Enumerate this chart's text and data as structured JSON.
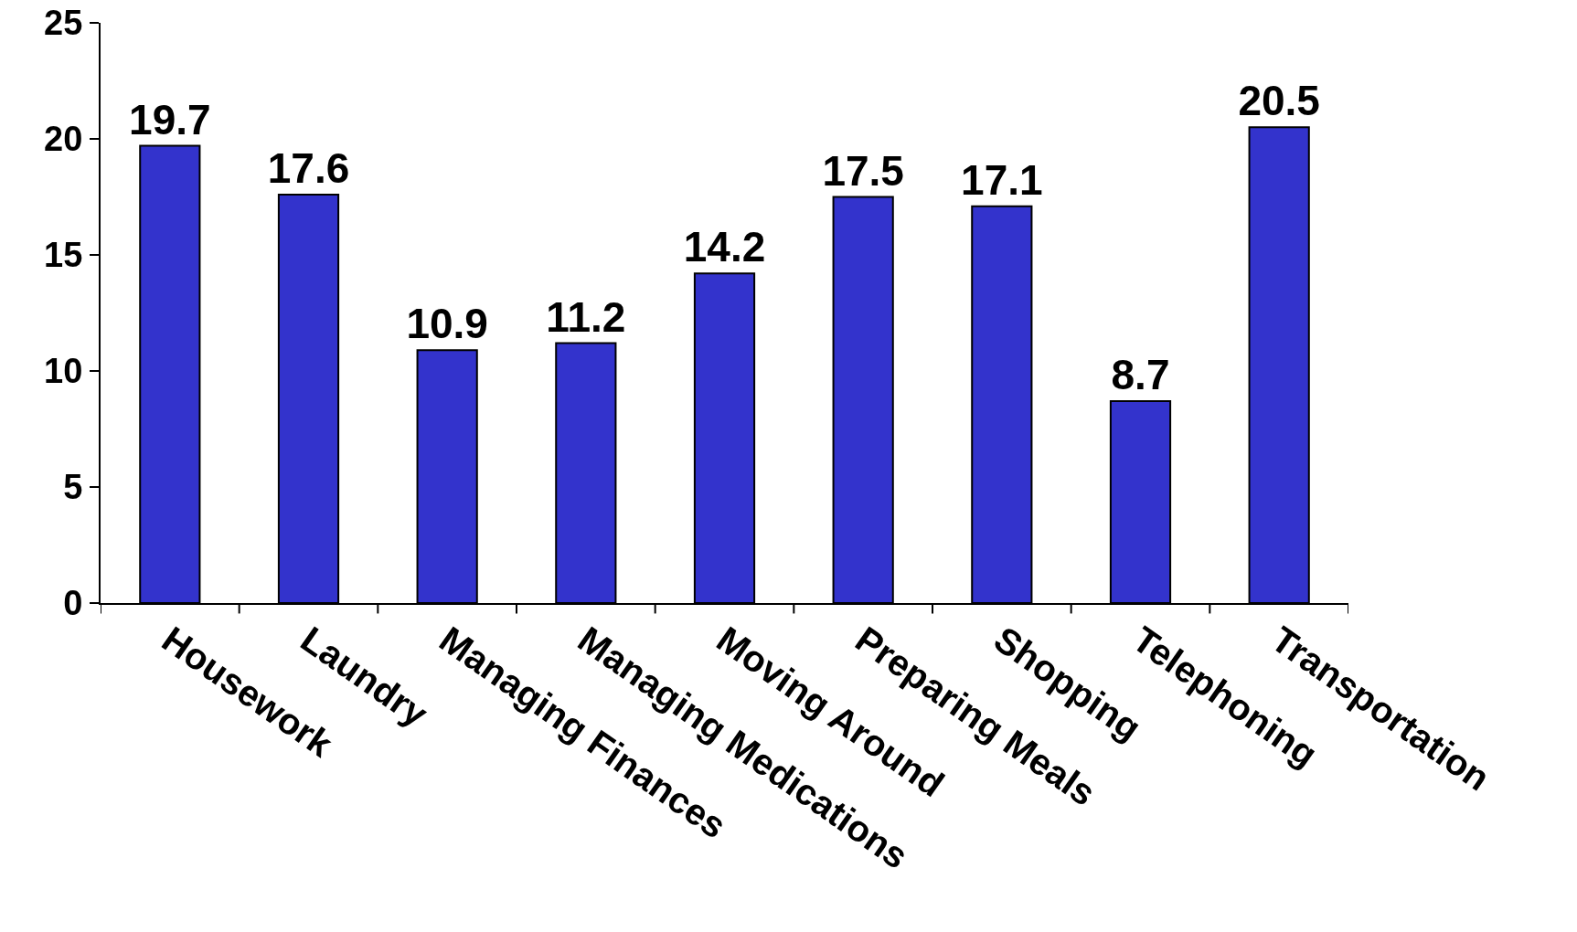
{
  "chart_data": {
    "type": "bar",
    "categories": [
      "Housework",
      "Laundry",
      "Managing Finances",
      "Managing Medications",
      "Moving Around",
      "Preparing Meals",
      "Shopping",
      "Telephoning",
      "Transportation"
    ],
    "values": [
      19.7,
      17.6,
      10.9,
      11.2,
      14.2,
      17.5,
      17.1,
      8.7,
      20.5
    ],
    "color": "#3333cc",
    "ylim": [
      0,
      25
    ],
    "yticks": [
      0,
      5,
      10,
      15,
      20,
      25
    ],
    "data_labels": true,
    "grid": false
  }
}
